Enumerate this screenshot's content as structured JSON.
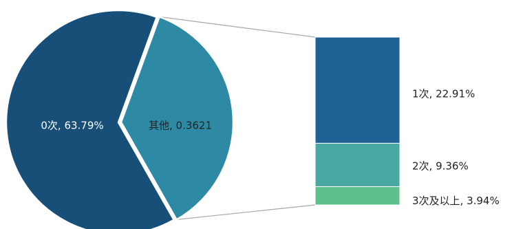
{
  "chart_data": {
    "type": "pie",
    "subtype": "bar-of-pie",
    "pie": {
      "slices": [
        {
          "label": "0次",
          "value": 0.6379,
          "display": "0次, 63.79%",
          "color": "#174f78"
        },
        {
          "label": "其他",
          "value": 0.3621,
          "display": "其他, 0.3621",
          "color": "#2e8aa4"
        }
      ]
    },
    "breakdown": {
      "of": "其他",
      "segments": [
        {
          "label": "1次",
          "value": 0.2291,
          "display": "1次, 22.91%",
          "color": "#1f6396"
        },
        {
          "label": "2次",
          "value": 0.0936,
          "display": "2次, 9.36%",
          "color": "#4aa8a3"
        },
        {
          "label": "3次及以上",
          "value": 0.0394,
          "display": "3次及以上, 3.94%",
          "color": "#5fbf8c"
        }
      ]
    },
    "legend": "none",
    "grid": false
  }
}
